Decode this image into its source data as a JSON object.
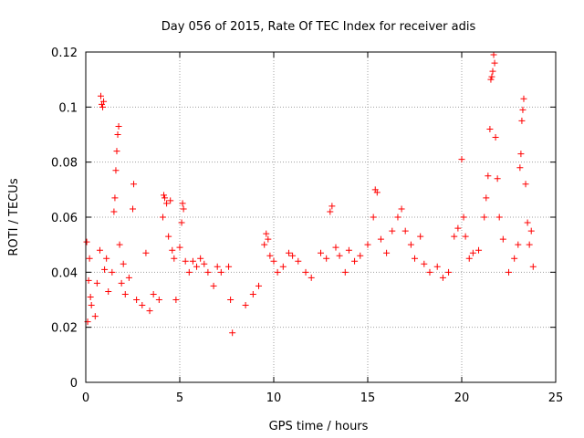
{
  "chart_data": {
    "type": "scatter",
    "title": "Day 056 of 2015, Rate Of TEC Index for receiver adis",
    "xlabel": "GPS time / hours",
    "ylabel": "ROTI / TECUs",
    "xlim": [
      0,
      25
    ],
    "ylim": [
      0,
      0.12
    ],
    "x_ticks": [
      0,
      5,
      10,
      15,
      20,
      25
    ],
    "y_ticks": [
      0,
      0.02,
      0.04,
      0.06,
      0.08,
      0.1,
      0.12
    ],
    "grid": true,
    "marker": "plus",
    "color": "#ff0000",
    "series": [
      {
        "points": [
          [
            0.05,
            0.051
          ],
          [
            0.1,
            0.022
          ],
          [
            0.15,
            0.037
          ],
          [
            0.2,
            0.045
          ],
          [
            0.25,
            0.031
          ],
          [
            0.3,
            0.028
          ],
          [
            0.5,
            0.024
          ],
          [
            0.6,
            0.036
          ],
          [
            0.75,
            0.048
          ],
          [
            0.8,
            0.104
          ],
          [
            0.85,
            0.101
          ],
          [
            0.9,
            0.1
          ],
          [
            0.95,
            0.102
          ],
          [
            1.0,
            0.041
          ],
          [
            1.1,
            0.045
          ],
          [
            1.2,
            0.033
          ],
          [
            1.4,
            0.04
          ],
          [
            1.5,
            0.062
          ],
          [
            1.55,
            0.067
          ],
          [
            1.6,
            0.077
          ],
          [
            1.65,
            0.084
          ],
          [
            1.7,
            0.09
          ],
          [
            1.75,
            0.093
          ],
          [
            1.8,
            0.05
          ],
          [
            1.9,
            0.036
          ],
          [
            2.0,
            0.043
          ],
          [
            2.1,
            0.032
          ],
          [
            2.3,
            0.038
          ],
          [
            2.5,
            0.063
          ],
          [
            2.55,
            0.072
          ],
          [
            2.7,
            0.03
          ],
          [
            3.0,
            0.028
          ],
          [
            3.2,
            0.047
          ],
          [
            3.4,
            0.026
          ],
          [
            3.6,
            0.032
          ],
          [
            3.9,
            0.03
          ],
          [
            4.1,
            0.06
          ],
          [
            4.15,
            0.068
          ],
          [
            4.2,
            0.067
          ],
          [
            4.3,
            0.065
          ],
          [
            4.4,
            0.053
          ],
          [
            4.5,
            0.066
          ],
          [
            4.6,
            0.048
          ],
          [
            4.7,
            0.045
          ],
          [
            4.8,
            0.03
          ],
          [
            5.0,
            0.049
          ],
          [
            5.1,
            0.058
          ],
          [
            5.15,
            0.065
          ],
          [
            5.2,
            0.063
          ],
          [
            5.3,
            0.044
          ],
          [
            5.5,
            0.04
          ],
          [
            5.7,
            0.044
          ],
          [
            5.9,
            0.042
          ],
          [
            6.1,
            0.045
          ],
          [
            6.3,
            0.043
          ],
          [
            6.5,
            0.04
          ],
          [
            6.8,
            0.035
          ],
          [
            7.0,
            0.042
          ],
          [
            7.2,
            0.04
          ],
          [
            7.6,
            0.042
          ],
          [
            7.7,
            0.03
          ],
          [
            7.8,
            0.018
          ],
          [
            8.5,
            0.028
          ],
          [
            8.9,
            0.032
          ],
          [
            9.2,
            0.035
          ],
          [
            9.5,
            0.05
          ],
          [
            9.6,
            0.054
          ],
          [
            9.7,
            0.052
          ],
          [
            9.8,
            0.046
          ],
          [
            10.0,
            0.044
          ],
          [
            10.2,
            0.04
          ],
          [
            10.5,
            0.042
          ],
          [
            10.8,
            0.047
          ],
          [
            11.0,
            0.046
          ],
          [
            11.3,
            0.044
          ],
          [
            11.7,
            0.04
          ],
          [
            12.0,
            0.038
          ],
          [
            12.5,
            0.047
          ],
          [
            12.8,
            0.045
          ],
          [
            13.0,
            0.062
          ],
          [
            13.1,
            0.064
          ],
          [
            13.3,
            0.049
          ],
          [
            13.5,
            0.046
          ],
          [
            13.8,
            0.04
          ],
          [
            14.0,
            0.048
          ],
          [
            14.3,
            0.044
          ],
          [
            14.6,
            0.046
          ],
          [
            15.0,
            0.05
          ],
          [
            15.3,
            0.06
          ],
          [
            15.4,
            0.07
          ],
          [
            15.5,
            0.069
          ],
          [
            15.7,
            0.052
          ],
          [
            16.0,
            0.047
          ],
          [
            16.3,
            0.055
          ],
          [
            16.6,
            0.06
          ],
          [
            16.8,
            0.063
          ],
          [
            17.0,
            0.055
          ],
          [
            17.3,
            0.05
          ],
          [
            17.5,
            0.045
          ],
          [
            17.8,
            0.053
          ],
          [
            18.0,
            0.043
          ],
          [
            18.3,
            0.04
          ],
          [
            18.7,
            0.042
          ],
          [
            19.0,
            0.038
          ],
          [
            19.3,
            0.04
          ],
          [
            19.6,
            0.053
          ],
          [
            19.8,
            0.056
          ],
          [
            20.0,
            0.081
          ],
          [
            20.1,
            0.06
          ],
          [
            20.2,
            0.053
          ],
          [
            20.4,
            0.045
          ],
          [
            20.6,
            0.047
          ],
          [
            20.9,
            0.048
          ],
          [
            21.2,
            0.06
          ],
          [
            21.3,
            0.067
          ],
          [
            21.4,
            0.075
          ],
          [
            21.5,
            0.092
          ],
          [
            21.55,
            0.11
          ],
          [
            21.6,
            0.111
          ],
          [
            21.65,
            0.113
          ],
          [
            21.7,
            0.119
          ],
          [
            21.75,
            0.116
          ],
          [
            21.8,
            0.089
          ],
          [
            21.9,
            0.074
          ],
          [
            22.0,
            0.06
          ],
          [
            22.2,
            0.052
          ],
          [
            22.5,
            0.04
          ],
          [
            22.8,
            0.045
          ],
          [
            23.0,
            0.05
          ],
          [
            23.1,
            0.078
          ],
          [
            23.15,
            0.083
          ],
          [
            23.2,
            0.095
          ],
          [
            23.25,
            0.099
          ],
          [
            23.3,
            0.103
          ],
          [
            23.4,
            0.072
          ],
          [
            23.5,
            0.058
          ],
          [
            23.6,
            0.05
          ],
          [
            23.7,
            0.055
          ],
          [
            23.8,
            0.042
          ]
        ]
      }
    ]
  }
}
